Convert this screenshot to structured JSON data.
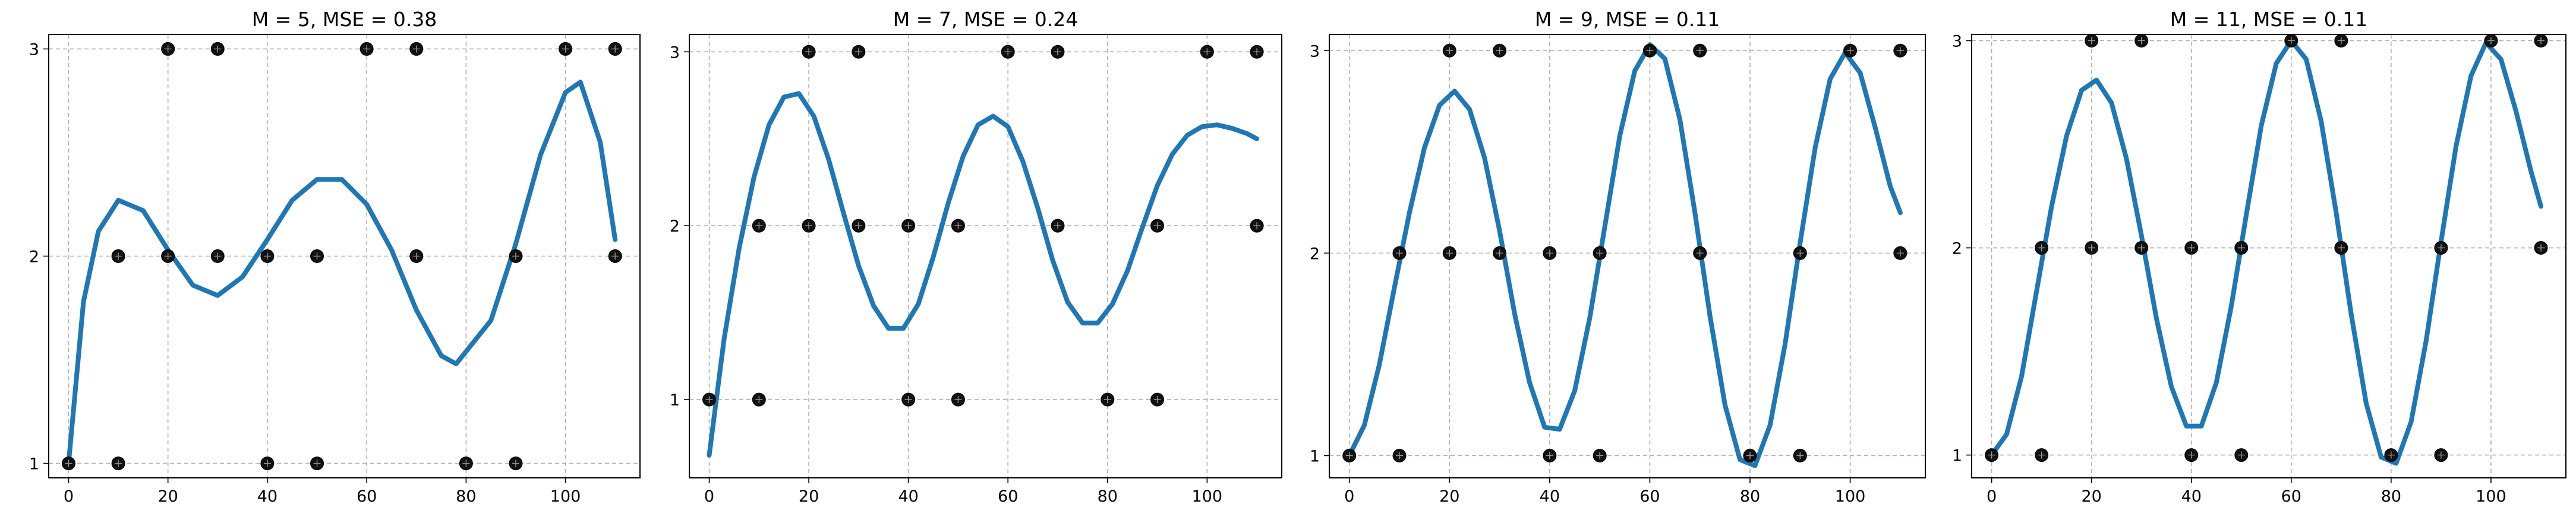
{
  "chart_data": [
    {
      "type": "scatter",
      "title": "M = 5, MSE = 0.38",
      "x_ticks": [
        "0",
        "20",
        "40",
        "60",
        "80",
        "100"
      ],
      "y_ticks": [
        "1",
        "2",
        "3"
      ],
      "xlim": [
        -4,
        115
      ],
      "ylim": [
        0.93,
        3.07
      ],
      "grid": true,
      "points": {
        "x": [
          0,
          10,
          10,
          20,
          20,
          30,
          30,
          40,
          40,
          50,
          50,
          60,
          70,
          70,
          80,
          90,
          90,
          100,
          110,
          110
        ],
        "y": [
          1,
          1,
          2,
          2,
          3,
          2,
          3,
          1,
          2,
          1,
          2,
          3,
          2,
          3,
          1,
          1,
          2,
          3,
          2,
          3
        ]
      },
      "fit_curve": {
        "x": [
          0,
          3,
          6,
          10,
          15,
          20,
          25,
          30,
          35,
          40,
          45,
          50,
          55,
          60,
          65,
          70,
          75,
          78,
          85,
          90,
          95,
          100,
          103,
          107,
          110
        ],
        "y": [
          1.0,
          1.78,
          2.12,
          2.27,
          2.22,
          2.03,
          1.86,
          1.81,
          1.9,
          2.08,
          2.27,
          2.37,
          2.37,
          2.25,
          2.03,
          1.74,
          1.52,
          1.48,
          1.69,
          2.06,
          2.49,
          2.79,
          2.84,
          2.55,
          2.08
        ]
      }
    },
    {
      "type": "scatter",
      "title": "M = 7, MSE = 0.24",
      "x_ticks": [
        "0",
        "20",
        "40",
        "60",
        "80",
        "100"
      ],
      "y_ticks": [
        "1",
        "2",
        "3"
      ],
      "xlim": [
        -4,
        115
      ],
      "ylim": [
        0.55,
        3.1
      ],
      "grid": true,
      "points": {
        "x": [
          0,
          10,
          10,
          20,
          20,
          30,
          30,
          40,
          40,
          50,
          50,
          60,
          70,
          70,
          80,
          90,
          90,
          100,
          110,
          110
        ],
        "y": [
          1,
          1,
          2,
          2,
          3,
          2,
          3,
          1,
          2,
          1,
          2,
          3,
          2,
          3,
          1,
          1,
          2,
          3,
          2,
          3
        ]
      },
      "fit_curve": {
        "x": [
          0,
          3,
          6,
          9,
          12,
          15,
          18,
          21,
          24,
          27,
          30,
          33,
          36,
          39,
          42,
          45,
          48,
          51,
          54,
          57,
          60,
          63,
          66,
          69,
          72,
          75,
          78,
          81,
          84,
          87,
          90,
          93,
          96,
          99,
          102,
          105,
          108,
          110
        ],
        "y": [
          0.68,
          1.35,
          1.87,
          2.28,
          2.58,
          2.74,
          2.76,
          2.63,
          2.38,
          2.07,
          1.77,
          1.54,
          1.41,
          1.41,
          1.55,
          1.82,
          2.13,
          2.4,
          2.58,
          2.63,
          2.57,
          2.37,
          2.1,
          1.8,
          1.56,
          1.44,
          1.44,
          1.55,
          1.74,
          1.99,
          2.23,
          2.41,
          2.52,
          2.57,
          2.58,
          2.56,
          2.53,
          2.5
        ]
      }
    },
    {
      "type": "scatter",
      "title": "M = 9, MSE = 0.11",
      "x_ticks": [
        "0",
        "20",
        "40",
        "60",
        "80",
        "100"
      ],
      "y_ticks": [
        "1",
        "2",
        "3"
      ],
      "xlim": [
        -4,
        115
      ],
      "ylim": [
        0.89,
        3.08
      ],
      "grid": true,
      "points": {
        "x": [
          0,
          10,
          10,
          20,
          20,
          30,
          30,
          40,
          40,
          50,
          50,
          60,
          70,
          70,
          80,
          90,
          90,
          100,
          110,
          110
        ],
        "y": [
          1,
          1,
          2,
          2,
          3,
          2,
          3,
          1,
          2,
          1,
          2,
          3,
          2,
          3,
          1,
          1,
          2,
          3,
          2,
          3
        ]
      },
      "fit_curve": {
        "x": [
          0,
          3,
          6,
          9,
          12,
          15,
          18,
          21,
          24,
          27,
          30,
          33,
          36,
          39,
          42,
          45,
          48,
          51,
          54,
          57,
          60,
          63,
          66,
          69,
          72,
          75,
          78,
          81,
          84,
          87,
          90,
          93,
          96,
          99,
          102,
          105,
          108,
          110
        ],
        "y": [
          1.0,
          1.15,
          1.45,
          1.83,
          2.2,
          2.52,
          2.73,
          2.8,
          2.71,
          2.47,
          2.11,
          1.7,
          1.36,
          1.14,
          1.13,
          1.32,
          1.68,
          2.13,
          2.58,
          2.9,
          3.03,
          2.96,
          2.66,
          2.2,
          1.69,
          1.25,
          0.98,
          0.95,
          1.15,
          1.55,
          2.05,
          2.52,
          2.86,
          2.99,
          2.89,
          2.62,
          2.33,
          2.2
        ]
      }
    },
    {
      "type": "scatter",
      "title": "M = 11, MSE = 0.11",
      "x_ticks": [
        "0",
        "20",
        "40",
        "60",
        "80",
        "100"
      ],
      "y_ticks": [
        "1",
        "2",
        "3"
      ],
      "xlim": [
        -4,
        115
      ],
      "ylim": [
        0.89,
        3.03
      ],
      "grid": true,
      "points": {
        "x": [
          0,
          10,
          10,
          20,
          20,
          30,
          30,
          40,
          40,
          50,
          50,
          60,
          70,
          70,
          80,
          90,
          90,
          100,
          110,
          110
        ],
        "y": [
          1,
          1,
          2,
          2,
          3,
          2,
          3,
          1,
          2,
          1,
          2,
          3,
          2,
          3,
          1,
          1,
          2,
          3,
          2,
          3
        ]
      },
      "fit_curve": {
        "x": [
          0,
          3,
          6,
          9,
          12,
          15,
          18,
          21,
          24,
          27,
          30,
          33,
          36,
          39,
          42,
          45,
          48,
          51,
          54,
          57,
          60,
          63,
          66,
          69,
          72,
          75,
          78,
          81,
          84,
          87,
          90,
          93,
          96,
          99,
          102,
          105,
          108,
          110
        ],
        "y": [
          1.0,
          1.1,
          1.38,
          1.79,
          2.2,
          2.54,
          2.76,
          2.81,
          2.7,
          2.43,
          2.06,
          1.66,
          1.33,
          1.14,
          1.14,
          1.35,
          1.72,
          2.16,
          2.59,
          2.89,
          3.0,
          2.91,
          2.61,
          2.17,
          1.68,
          1.25,
          0.99,
          0.96,
          1.16,
          1.55,
          2.03,
          2.49,
          2.83,
          2.99,
          2.91,
          2.66,
          2.37,
          2.2
        ]
      }
    }
  ]
}
